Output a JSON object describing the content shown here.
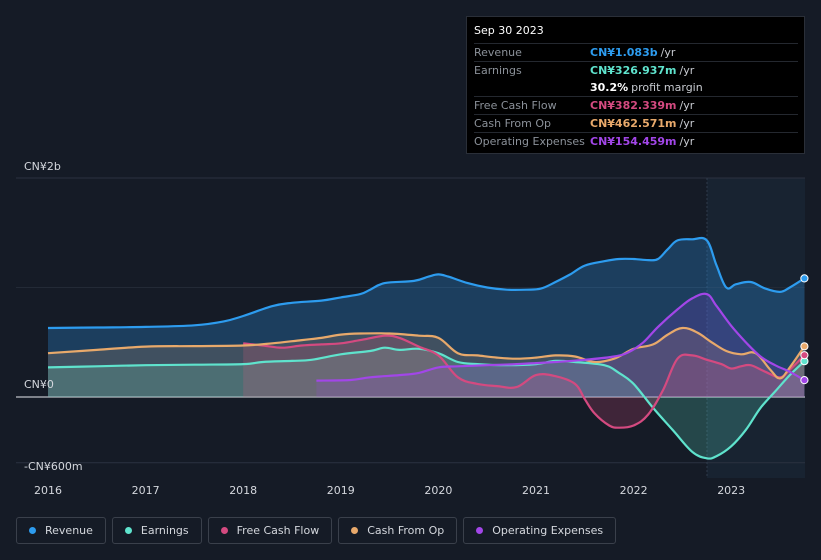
{
  "chart_data": {
    "type": "area",
    "x_ticks": [
      "2016",
      "2017",
      "2018",
      "2019",
      "2020",
      "2021",
      "2022",
      "2023"
    ],
    "y_labels": {
      "top": "CN¥2b",
      "zero": "CN¥0",
      "bottom": "-CN¥600m"
    },
    "ylim": [
      -600,
      2000
    ],
    "y_unit": "CN¥m",
    "grid": true,
    "legend_position": "bottom",
    "series": [
      {
        "name": "Revenue",
        "color": "#2d9cef",
        "points": [
          [
            2016.0,
            630
          ],
          [
            2016.5,
            635
          ],
          [
            2017.0,
            640
          ],
          [
            2017.5,
            655
          ],
          [
            2017.8,
            690
          ],
          [
            2018.0,
            740
          ],
          [
            2018.3,
            830
          ],
          [
            2018.5,
            860
          ],
          [
            2018.8,
            880
          ],
          [
            2019.0,
            910
          ],
          [
            2019.2,
            940
          ],
          [
            2019.3,
            980
          ],
          [
            2019.45,
            1040
          ],
          [
            2019.75,
            1060
          ],
          [
            2019.9,
            1100
          ],
          [
            2020.0,
            1120
          ],
          [
            2020.1,
            1100
          ],
          [
            2020.3,
            1040
          ],
          [
            2020.5,
            1000
          ],
          [
            2020.7,
            980
          ],
          [
            2020.9,
            980
          ],
          [
            2021.05,
            990
          ],
          [
            2021.2,
            1050
          ],
          [
            2021.35,
            1120
          ],
          [
            2021.5,
            1200
          ],
          [
            2021.7,
            1240
          ],
          [
            2021.85,
            1260
          ],
          [
            2022.0,
            1260
          ],
          [
            2022.15,
            1250
          ],
          [
            2022.25,
            1260
          ],
          [
            2022.35,
            1350
          ],
          [
            2022.45,
            1430
          ],
          [
            2022.6,
            1440
          ],
          [
            2022.75,
            1430
          ],
          [
            2022.85,
            1200
          ],
          [
            2022.95,
            1000
          ],
          [
            2023.05,
            1030
          ],
          [
            2023.2,
            1050
          ],
          [
            2023.35,
            990
          ],
          [
            2023.5,
            960
          ],
          [
            2023.6,
            1000
          ],
          [
            2023.75,
            1083
          ]
        ]
      },
      {
        "name": "Earnings",
        "color": "#5fe3cd",
        "points": [
          [
            2016.0,
            270
          ],
          [
            2016.5,
            280
          ],
          [
            2017.0,
            290
          ],
          [
            2017.5,
            295
          ],
          [
            2018.0,
            300
          ],
          [
            2018.2,
            320
          ],
          [
            2018.5,
            330
          ],
          [
            2018.7,
            340
          ],
          [
            2019.0,
            390
          ],
          [
            2019.3,
            420
          ],
          [
            2019.45,
            450
          ],
          [
            2019.6,
            430
          ],
          [
            2019.8,
            440
          ],
          [
            2020.0,
            400
          ],
          [
            2020.2,
            320
          ],
          [
            2020.4,
            300
          ],
          [
            2020.7,
            290
          ],
          [
            2021.0,
            300
          ],
          [
            2021.2,
            330
          ],
          [
            2021.4,
            320
          ],
          [
            2021.7,
            290
          ],
          [
            2021.85,
            220
          ],
          [
            2022.0,
            120
          ],
          [
            2022.2,
            -100
          ],
          [
            2022.4,
            -300
          ],
          [
            2022.6,
            -500
          ],
          [
            2022.75,
            -560
          ],
          [
            2022.85,
            -540
          ],
          [
            2023.0,
            -450
          ],
          [
            2023.15,
            -300
          ],
          [
            2023.3,
            -100
          ],
          [
            2023.45,
            50
          ],
          [
            2023.6,
            200
          ],
          [
            2023.75,
            327
          ]
        ]
      },
      {
        "name": "Free Cash Flow",
        "color": "#d44a80",
        "points": [
          [
            2018.0,
            490
          ],
          [
            2018.2,
            470
          ],
          [
            2018.4,
            450
          ],
          [
            2018.6,
            470
          ],
          [
            2018.8,
            480
          ],
          [
            2019.0,
            490
          ],
          [
            2019.2,
            520
          ],
          [
            2019.45,
            560
          ],
          [
            2019.6,
            540
          ],
          [
            2019.8,
            460
          ],
          [
            2020.0,
            380
          ],
          [
            2020.2,
            180
          ],
          [
            2020.4,
            120
          ],
          [
            2020.6,
            100
          ],
          [
            2020.8,
            90
          ],
          [
            2021.0,
            200
          ],
          [
            2021.2,
            190
          ],
          [
            2021.4,
            120
          ],
          [
            2021.5,
            -20
          ],
          [
            2021.6,
            -150
          ],
          [
            2021.75,
            -260
          ],
          [
            2021.85,
            -280
          ],
          [
            2022.0,
            -260
          ],
          [
            2022.15,
            -160
          ],
          [
            2022.3,
            60
          ],
          [
            2022.45,
            350
          ],
          [
            2022.6,
            380
          ],
          [
            2022.75,
            340
          ],
          [
            2022.9,
            300
          ],
          [
            2023.0,
            260
          ],
          [
            2023.1,
            280
          ],
          [
            2023.2,
            290
          ],
          [
            2023.35,
            230
          ],
          [
            2023.5,
            180
          ],
          [
            2023.6,
            250
          ],
          [
            2023.75,
            382
          ]
        ]
      },
      {
        "name": "Cash From Op",
        "color": "#e8a96b",
        "points": [
          [
            2016.0,
            400
          ],
          [
            2016.5,
            430
          ],
          [
            2017.0,
            460
          ],
          [
            2017.5,
            465
          ],
          [
            2018.0,
            470
          ],
          [
            2018.3,
            490
          ],
          [
            2018.6,
            520
          ],
          [
            2018.8,
            540
          ],
          [
            2019.0,
            570
          ],
          [
            2019.2,
            580
          ],
          [
            2019.5,
            580
          ],
          [
            2019.8,
            560
          ],
          [
            2020.0,
            540
          ],
          [
            2020.2,
            400
          ],
          [
            2020.4,
            380
          ],
          [
            2020.6,
            360
          ],
          [
            2020.8,
            350
          ],
          [
            2021.0,
            360
          ],
          [
            2021.2,
            380
          ],
          [
            2021.4,
            370
          ],
          [
            2021.6,
            320
          ],
          [
            2021.8,
            350
          ],
          [
            2022.0,
            440
          ],
          [
            2022.2,
            480
          ],
          [
            2022.35,
            570
          ],
          [
            2022.5,
            630
          ],
          [
            2022.65,
            590
          ],
          [
            2022.8,
            500
          ],
          [
            2022.95,
            420
          ],
          [
            2023.1,
            390
          ],
          [
            2023.25,
            400
          ],
          [
            2023.4,
            250
          ],
          [
            2023.5,
            170
          ],
          [
            2023.6,
            270
          ],
          [
            2023.75,
            463
          ]
        ]
      },
      {
        "name": "Operating Expenses",
        "color": "#a246e8",
        "points": [
          [
            2018.75,
            150
          ],
          [
            2019.1,
            155
          ],
          [
            2019.3,
            180
          ],
          [
            2019.6,
            200
          ],
          [
            2019.8,
            220
          ],
          [
            2020.0,
            270
          ],
          [
            2020.2,
            280
          ],
          [
            2020.5,
            290
          ],
          [
            2020.8,
            300
          ],
          [
            2021.0,
            310
          ],
          [
            2021.2,
            320
          ],
          [
            2021.5,
            340
          ],
          [
            2021.8,
            370
          ],
          [
            2021.95,
            410
          ],
          [
            2022.1,
            500
          ],
          [
            2022.25,
            640
          ],
          [
            2022.45,
            800
          ],
          [
            2022.6,
            900
          ],
          [
            2022.75,
            940
          ],
          [
            2022.85,
            830
          ],
          [
            2023.0,
            650
          ],
          [
            2023.15,
            500
          ],
          [
            2023.3,
            370
          ],
          [
            2023.45,
            290
          ],
          [
            2023.6,
            230
          ],
          [
            2023.75,
            154
          ]
        ]
      }
    ]
  },
  "tooltip": {
    "date": "Sep 30 2023",
    "rows": [
      {
        "label": "Revenue",
        "value": "CN¥1.083b",
        "unit": "/yr",
        "color": "#2d9cef"
      },
      {
        "label": "Earnings",
        "value": "CN¥326.937m",
        "unit": "/yr",
        "color": "#5fe3cd"
      },
      {
        "label": "",
        "value": "30.2%",
        "unit": "profit margin",
        "color": "#ffffff"
      },
      {
        "label": "Free Cash Flow",
        "value": "CN¥382.339m",
        "unit": "/yr",
        "color": "#d44a80"
      },
      {
        "label": "Cash From Op",
        "value": "CN¥462.571m",
        "unit": "/yr",
        "color": "#e8a96b"
      },
      {
        "label": "Operating Expenses",
        "value": "CN¥154.459m",
        "unit": "/yr",
        "color": "#a246e8"
      }
    ]
  },
  "legend": [
    {
      "label": "Revenue",
      "color": "#2d9cef"
    },
    {
      "label": "Earnings",
      "color": "#5fe3cd"
    },
    {
      "label": "Free Cash Flow",
      "color": "#d44a80"
    },
    {
      "label": "Cash From Op",
      "color": "#e8a96b"
    },
    {
      "label": "Operating Expenses",
      "color": "#a246e8"
    }
  ]
}
